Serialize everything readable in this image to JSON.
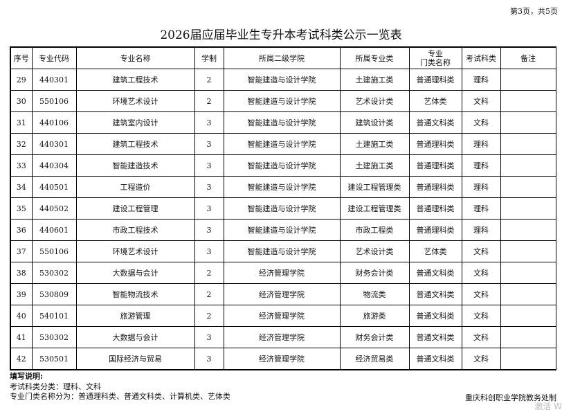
{
  "page_info": "第3页，共5页",
  "title": "2026届应届毕业生专升本考试科类公示一览表",
  "headers": [
    "序号",
    "专业代码",
    "专业名称",
    "学制",
    "所属二级学院",
    "所属专业类",
    "专业\n门类名称",
    "考试科类",
    "备注"
  ],
  "rows": [
    [
      "29",
      "440301",
      "建筑工程技术",
      "2",
      "智能建造与设计学院",
      "土建施工类",
      "普通理科类",
      "理科",
      ""
    ],
    [
      "30",
      "550106",
      "环境艺术设计",
      "2",
      "智能建造与设计学院",
      "艺术设计类",
      "艺体类",
      "文科",
      ""
    ],
    [
      "31",
      "440106",
      "建筑室内设计",
      "3",
      "智能建造与设计学院",
      "建筑设计类",
      "普通文科类",
      "文科",
      ""
    ],
    [
      "32",
      "440301",
      "建筑工程技术",
      "3",
      "智能建造与设计学院",
      "土建施工类",
      "普通理科类",
      "理科",
      ""
    ],
    [
      "33",
      "440304",
      "智能建造技术",
      "3",
      "智能建造与设计学院",
      "土建施工类",
      "普通理科类",
      "理科",
      ""
    ],
    [
      "34",
      "440501",
      "工程造价",
      "3",
      "智能建造与设计学院",
      "建设工程管理类",
      "普通理科类",
      "理科",
      ""
    ],
    [
      "35",
      "440502",
      "建设工程管理",
      "3",
      "智能建造与设计学院",
      "建设工程管理类",
      "普通理科类",
      "理科",
      ""
    ],
    [
      "36",
      "440601",
      "市政工程技术",
      "3",
      "智能建造与设计学院",
      "市政工程类",
      "普通理科类",
      "理科",
      ""
    ],
    [
      "37",
      "550106",
      "环境艺术设计",
      "3",
      "智能建造与设计学院",
      "艺术设计类",
      "艺体类",
      "文科",
      ""
    ],
    [
      "38",
      "530302",
      "大数据与会计",
      "2",
      "经济管理学院",
      "财务会计类",
      "普通文科类",
      "文科",
      ""
    ],
    [
      "39",
      "530809",
      "智能物流技术",
      "2",
      "经济管理学院",
      "物流类",
      "普通文科类",
      "文科",
      ""
    ],
    [
      "40",
      "540101",
      "旅游管理",
      "2",
      "经济管理学院",
      "旅游类",
      "普通文科类",
      "文科",
      ""
    ],
    [
      "41",
      "530302",
      "大数据与会计",
      "3",
      "经济管理学院",
      "财务会计类",
      "普通文科类",
      "文科",
      ""
    ],
    [
      "42",
      "530501",
      "国际经济与贸易",
      "3",
      "经济管理学院",
      "经济贸易类",
      "普通文科类",
      "文科",
      ""
    ]
  ],
  "notes": [
    "填写说明:",
    "考试科类分类：理科、文科",
    "专业门类名称分为：普通理科类、普通文科类、计算机类、艺体类"
  ],
  "org": "重庆科创职业学院教务处制",
  "watermark": "激活 W"
}
